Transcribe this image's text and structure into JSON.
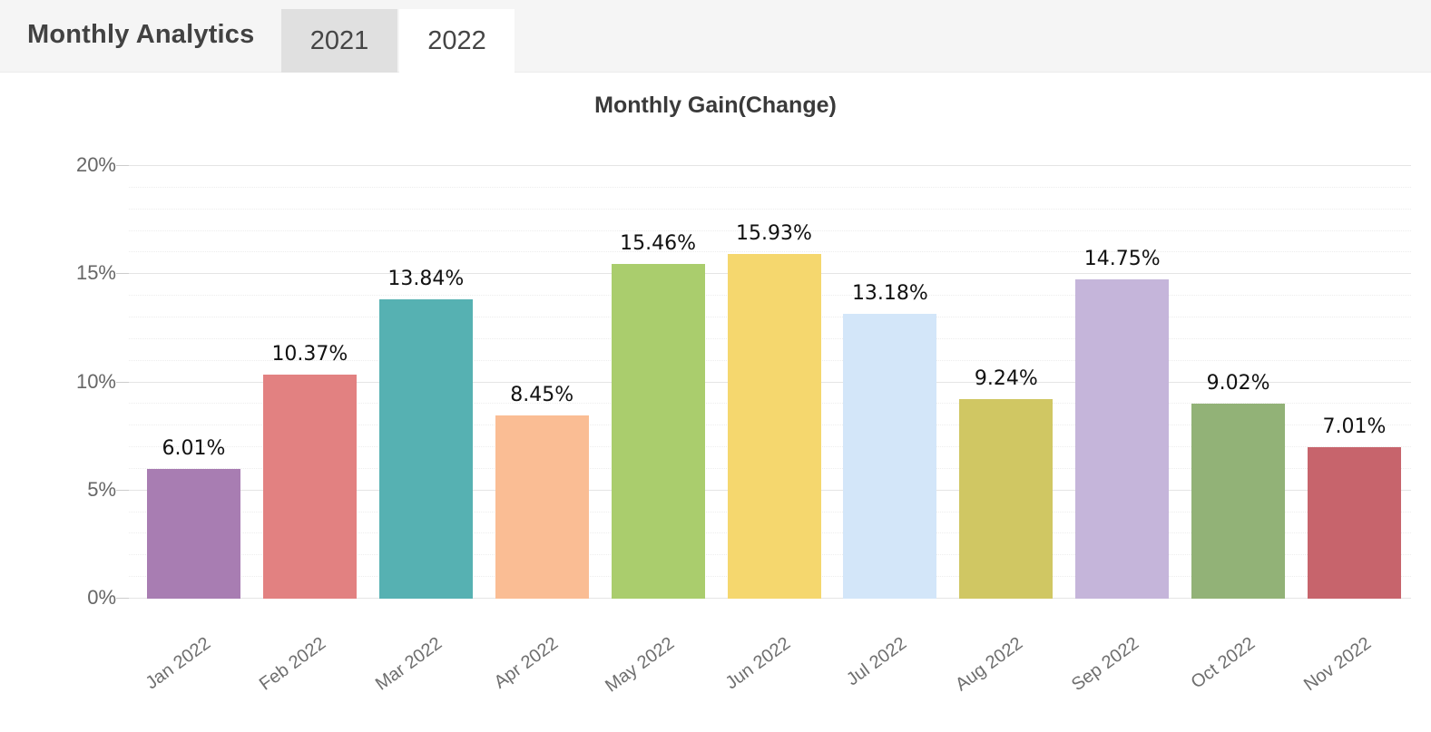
{
  "header": {
    "title": "Monthly Analytics",
    "tabs": [
      {
        "label": "2021",
        "selected": false
      },
      {
        "label": "2022",
        "selected": true
      }
    ]
  },
  "chart_data": {
    "type": "bar",
    "title": "Monthly Gain(Change)",
    "categories": [
      "Jan 2022",
      "Feb 2022",
      "Mar 2022",
      "Apr 2022",
      "May 2022",
      "Jun 2022",
      "Jul 2022",
      "Aug 2022",
      "Sep 2022",
      "Oct 2022",
      "Nov 2022"
    ],
    "values": [
      6.01,
      10.37,
      13.84,
      8.45,
      15.46,
      15.93,
      13.18,
      9.24,
      14.75,
      9.02,
      7.01
    ],
    "value_labels": [
      "6.01%",
      "10.37%",
      "13.84%",
      "8.45%",
      "15.46%",
      "15.93%",
      "13.18%",
      "9.24%",
      "14.75%",
      "9.02%",
      "7.01%"
    ],
    "bar_colors": [
      "#a87db2",
      "#e28181",
      "#56b1b2",
      "#fabd94",
      "#aacd6d",
      "#f5d76e",
      "#d3e6f9",
      "#d0c763",
      "#c5b5da",
      "#92b277",
      "#c7646c"
    ],
    "ylim": [
      0,
      20
    ],
    "yticks": [
      0,
      5,
      10,
      15,
      20
    ],
    "ytick_labels": [
      "0%",
      "5%",
      "10%",
      "15%",
      "20%"
    ],
    "grid": {
      "major_interval": 5,
      "minor_interval": 1,
      "visible": true
    },
    "legend_position": "none",
    "xlabel": "",
    "ylabel": ""
  }
}
